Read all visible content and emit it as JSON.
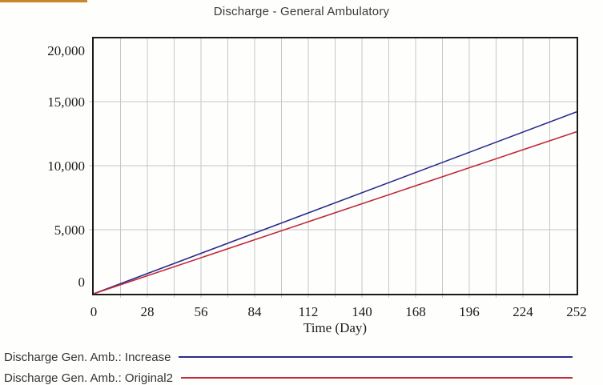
{
  "window": {
    "accent_color": "#c8882a"
  },
  "chart": {
    "title": "Discharge - General Ambulatory",
    "xlabel": "Time (Day)"
  },
  "legend": {
    "items": [
      {
        "label": "Discharge Gen. Amb.: Increase",
        "color": "#2c2c8e"
      },
      {
        "label": "Discharge Gen. Amb.: Original2",
        "color": "#c12b3b"
      }
    ]
  },
  "chart_data": {
    "type": "line",
    "title": "Discharge - General Ambulatory",
    "xlabel": "Time (Day)",
    "ylabel": "",
    "xlim": [
      0,
      252
    ],
    "ylim": [
      0,
      20000
    ],
    "xticks": [
      0,
      28,
      56,
      84,
      112,
      140,
      168,
      196,
      224,
      252
    ],
    "yticks": [
      0,
      5000,
      10000,
      15000,
      20000
    ],
    "minor_x_grid_step": 14,
    "grid": true,
    "grid_color": "#c7c7c7",
    "border_color": "#1a1a1a",
    "legend_position": "bottom-left",
    "series": [
      {
        "name": "Discharge Gen. Amb.: Increase",
        "color": "#2c2c8e",
        "x": [
          0,
          252
        ],
        "y": [
          0,
          14200
        ]
      },
      {
        "name": "Discharge Gen. Amb.: Original2",
        "color": "#c12b3b",
        "x": [
          0,
          252
        ],
        "y": [
          0,
          12650
        ]
      }
    ]
  }
}
